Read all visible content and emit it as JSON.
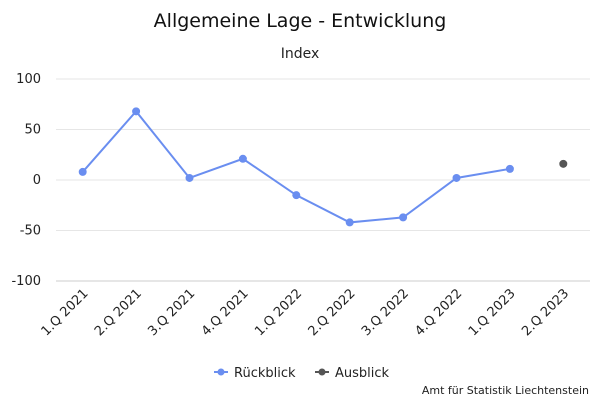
{
  "chart_data": {
    "type": "line",
    "title": "Allgemeine Lage - Entwicklung",
    "subtitle": "Index",
    "categories": [
      "1.Q 2021",
      "2.Q 2021",
      "3.Q 2021",
      "4.Q 2021",
      "1.Q 2022",
      "2.Q 2022",
      "3.Q 2022",
      "4.Q 2022",
      "1.Q 2023",
      "2.Q 2023"
    ],
    "ylim": [
      -100,
      100
    ],
    "yticks": [
      100,
      50,
      0,
      -50,
      -100
    ],
    "ytick_labels": [
      "100",
      "50",
      "0",
      "-50",
      "-100"
    ],
    "grid": true,
    "legend_position": "bottom",
    "series": [
      {
        "name": "Rückblick",
        "color": "#6a8ef0",
        "values": [
          8,
          68,
          2,
          21,
          -15,
          -42,
          -37,
          2,
          11,
          null
        ]
      },
      {
        "name": "Ausblick",
        "color": "#555555",
        "values": [
          null,
          null,
          null,
          null,
          null,
          null,
          null,
          null,
          null,
          16
        ]
      }
    ]
  },
  "credits": "Amt für Statistik Liechtenstein"
}
